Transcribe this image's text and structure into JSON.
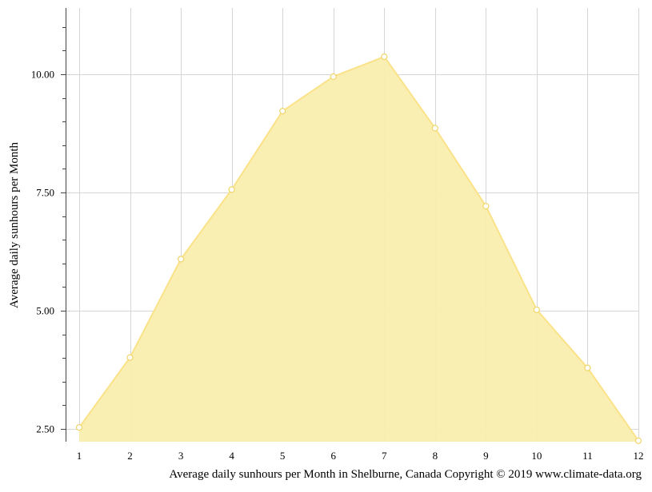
{
  "chart_data": {
    "type": "area",
    "x": [
      1,
      2,
      3,
      4,
      5,
      6,
      7,
      8,
      9,
      10,
      11,
      12
    ],
    "series": [
      {
        "values": [
          2.53,
          4.01,
          6.09,
          7.56,
          9.22,
          9.95,
          10.37,
          8.86,
          7.21,
          5.02,
          3.79,
          2.25
        ]
      }
    ],
    "x_ticks": [
      "1",
      "2",
      "3",
      "4",
      "5",
      "6",
      "7",
      "8",
      "9",
      "10",
      "11",
      "12"
    ],
    "y_ticks": [
      {
        "value": 2.5,
        "label": "2.50"
      },
      {
        "value": 5.0,
        "label": "5.00"
      },
      {
        "value": 7.5,
        "label": "7.50"
      },
      {
        "value": 10.0,
        "label": "10.00"
      }
    ],
    "xlabel": "Average daily sunhours per Month in Shelburne, Canada Copyright © 2019 www.climate-data.org",
    "ylabel": "Average daily sunhours per Month",
    "xlim": [
      1,
      12
    ],
    "ylim": [
      2.23,
      11.4
    ],
    "grid": true,
    "legend": "none",
    "colors": {
      "fill": "#faeeae",
      "line": "#fae289",
      "marker_fill": "#ffffff",
      "marker_stroke": "#f0d56a",
      "grid": "#d6d6d6",
      "axis": "#444444"
    }
  }
}
